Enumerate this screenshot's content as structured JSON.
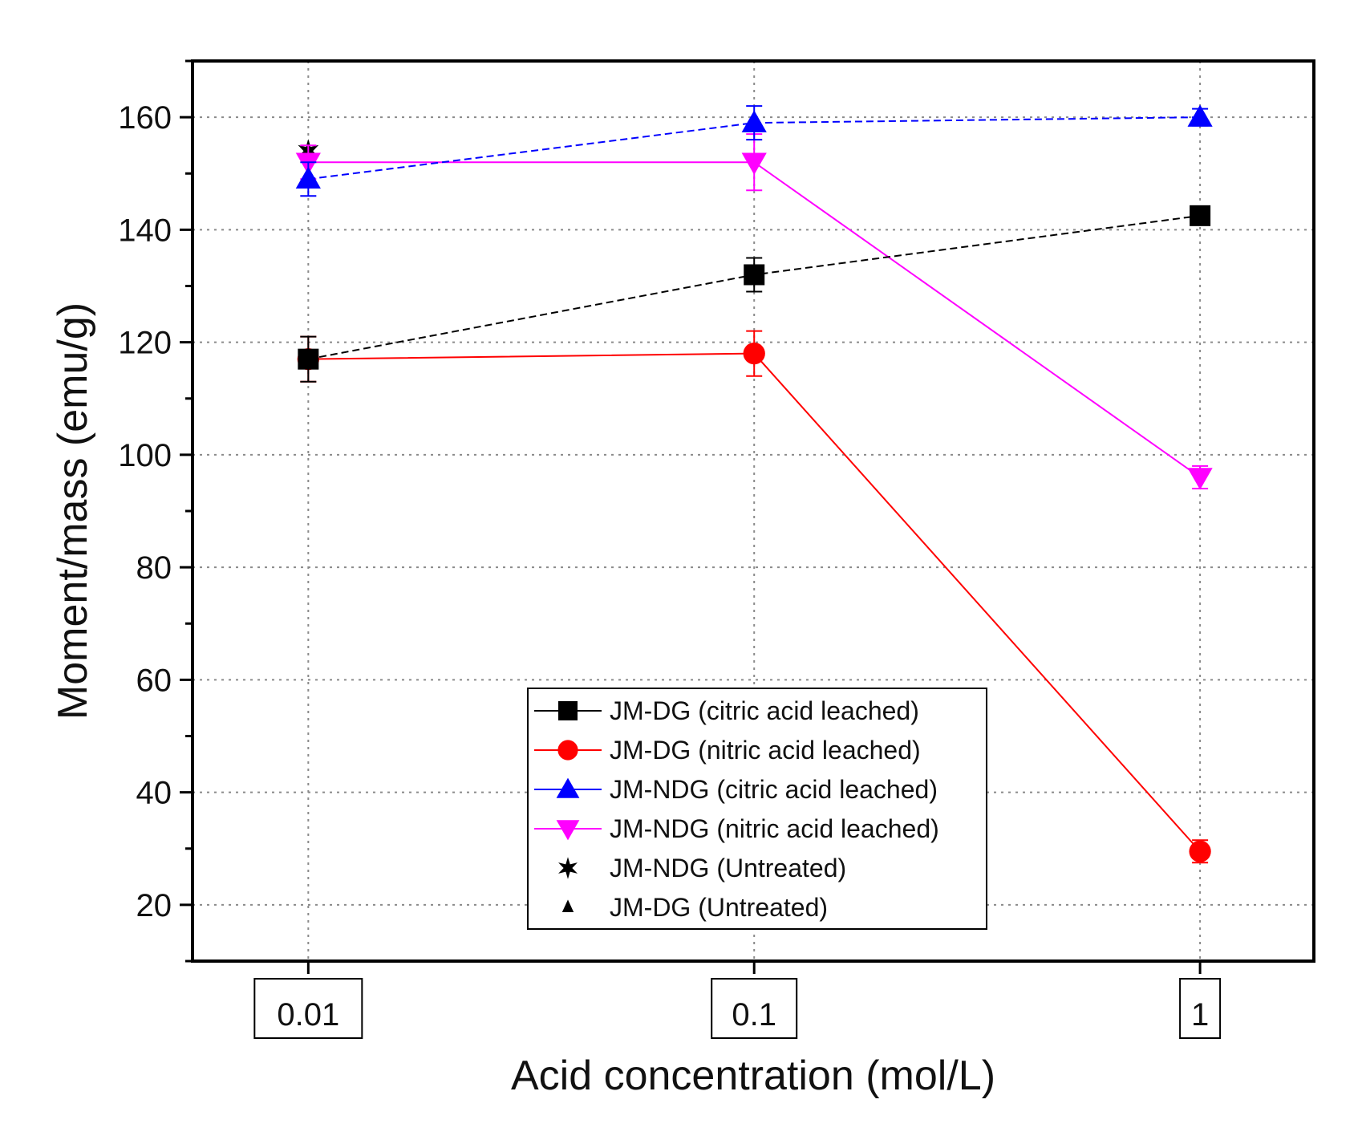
{
  "chart_data": {
    "type": "line",
    "title": "",
    "xlabel": "Acid concentration (mol/L)",
    "ylabel": "Moment/mass (emu/g)",
    "x_scale": "log",
    "categories": [
      "0.01",
      "0.1",
      "1"
    ],
    "x": [
      0.01,
      0.1,
      1
    ],
    "xlim": [
      0.0055,
      1.8
    ],
    "ylim": [
      10,
      170
    ],
    "yticks": [
      20,
      40,
      60,
      80,
      100,
      120,
      140,
      160
    ],
    "grid": true,
    "legend_position": "bottom-center",
    "series": [
      {
        "name": "JM-DG (citric acid leached)",
        "marker": "square",
        "color": "#000000",
        "dash": "dashed",
        "values": [
          117,
          132,
          142.5
        ],
        "errors": [
          4,
          3,
          1.5
        ]
      },
      {
        "name": "JM-DG (nitric acid leached)",
        "marker": "circle",
        "color": "#ff0000",
        "dash": "solid",
        "values": [
          117,
          118,
          29.5
        ],
        "errors": [
          4,
          4,
          2
        ]
      },
      {
        "name": "JM-NDG (citric acid leached)",
        "marker": "triangle-up",
        "color": "#0000ff",
        "dash": "dashed",
        "values": [
          149,
          159,
          160
        ],
        "errors": [
          3,
          3,
          1.5
        ]
      },
      {
        "name": "JM-NDG (nitric acid leached)",
        "marker": "triangle-down",
        "color": "#ff00ff",
        "dash": "solid",
        "values": [
          152,
          152,
          96
        ],
        "errors": [
          3,
          5,
          2
        ]
      },
      {
        "name": "JM-NDG (Untreated)",
        "marker": "star",
        "color": "#000000",
        "dash": "none",
        "x": [
          0.01
        ],
        "values": [
          154
        ]
      },
      {
        "name": "JM-DG (Untreated)",
        "marker": "small-triangle",
        "color": "#000000",
        "dash": "none",
        "x": [
          0.01
        ],
        "values": [
          117
        ]
      }
    ]
  }
}
